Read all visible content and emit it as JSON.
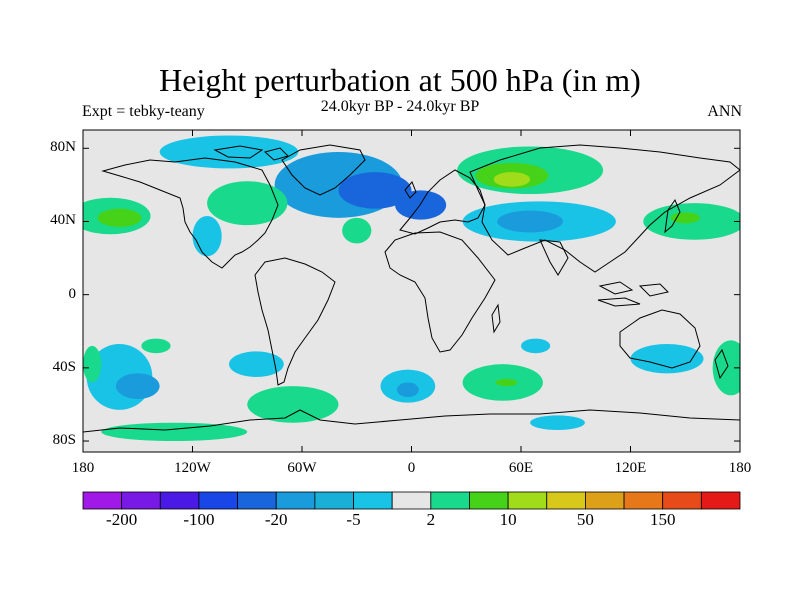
{
  "title": "Height perturbation at 500 hPa (in m)",
  "subtitle": "24.0kyr BP - 24.0kyr BP",
  "left_label": "Expt = tebky-teany",
  "right_label": "ANN",
  "colors": {
    "land_bg": "#e6e6e6",
    "coast": "#000000",
    "blue_light": "#19c3e6",
    "blue_mid": "#199bdc",
    "blue_dark": "#1966dc",
    "green_light": "#19d98c",
    "green_mid": "#46d219",
    "yellow_green": "#a0dc19"
  },
  "map": {
    "lat_ticks": [
      {
        "lat": 80,
        "label": "80N"
      },
      {
        "lat": 40,
        "label": "40N"
      },
      {
        "lat": 0,
        "label": "0"
      },
      {
        "lat": -40,
        "label": "40S"
      },
      {
        "lat": -80,
        "label": "80S"
      }
    ],
    "lon_ticks": [
      {
        "lon": -180,
        "label": "180"
      },
      {
        "lon": -120,
        "label": "120W"
      },
      {
        "lon": -60,
        "label": "60W"
      },
      {
        "lon": 0,
        "label": "0"
      },
      {
        "lon": 60,
        "label": "60E"
      },
      {
        "lon": 120,
        "label": "120E"
      },
      {
        "lon": 180,
        "label": "180"
      }
    ],
    "blobs": [
      {
        "region": "arctic-canada",
        "level": "blue_light",
        "lon": -100,
        "lat": 78,
        "rx": 38,
        "ry": 9
      },
      {
        "region": "north-atlantic",
        "level": "blue_mid",
        "lon": -40,
        "lat": 60,
        "rx": 35,
        "ry": 18
      },
      {
        "region": "north-atlantic-core",
        "level": "blue_dark",
        "lon": -20,
        "lat": 57,
        "rx": 20,
        "ry": 10
      },
      {
        "region": "europe",
        "level": "blue_dark",
        "lon": 5,
        "lat": 49,
        "rx": 14,
        "ry": 8
      },
      {
        "region": "central-asia",
        "level": "blue_light",
        "lon": 70,
        "lat": 40,
        "rx": 42,
        "ry": 11
      },
      {
        "region": "central-asia-core",
        "level": "blue_mid",
        "lon": 65,
        "lat": 40,
        "rx": 18,
        "ry": 6
      },
      {
        "region": "east-pacific",
        "level": "blue_light",
        "lon": -112,
        "lat": 32,
        "rx": 8,
        "ry": 11
      },
      {
        "region": "south-pacific",
        "level": "blue_light",
        "lon": -160,
        "lat": -45,
        "rx": 18,
        "ry": 18
      },
      {
        "region": "south-pacific-core",
        "level": "blue_mid",
        "lon": -150,
        "lat": -50,
        "rx": 12,
        "ry": 7
      },
      {
        "region": "south-america-west",
        "level": "blue_light",
        "lon": -85,
        "lat": -38,
        "rx": 15,
        "ry": 7
      },
      {
        "region": "south-atlantic",
        "level": "blue_light",
        "lon": -2,
        "lat": -50,
        "rx": 15,
        "ry": 9
      },
      {
        "region": "south-atlantic-core",
        "level": "blue_mid",
        "lon": -2,
        "lat": -52,
        "rx": 6,
        "ry": 4
      },
      {
        "region": "south-africa",
        "level": "blue_light",
        "lon": 68,
        "lat": -28,
        "rx": 8,
        "ry": 4
      },
      {
        "region": "australia",
        "level": "blue_light",
        "lon": 140,
        "lat": -35,
        "rx": 20,
        "ry": 8
      },
      {
        "region": "southern-ocean",
        "level": "blue_light",
        "lon": 80,
        "lat": -70,
        "rx": 15,
        "ry": 4
      },
      {
        "region": "siberia",
        "level": "green_light",
        "lon": 65,
        "lat": 68,
        "rx": 40,
        "ry": 13
      },
      {
        "region": "siberia-core",
        "level": "green_mid",
        "lon": 55,
        "lat": 65,
        "rx": 20,
        "ry": 7
      },
      {
        "region": "siberia-peak",
        "level": "yellow_green",
        "lon": 55,
        "lat": 63,
        "rx": 10,
        "ry": 4
      },
      {
        "region": "north-pacific",
        "level": "green_light",
        "lon": -165,
        "lat": 43,
        "rx": 22,
        "ry": 10
      },
      {
        "region": "north-pacific-core",
        "level": "green_mid",
        "lon": -160,
        "lat": 42,
        "rx": 12,
        "ry": 5
      },
      {
        "region": "north-america",
        "level": "green_light",
        "lon": -90,
        "lat": 50,
        "rx": 22,
        "ry": 12
      },
      {
        "region": "mid-atlantic",
        "level": "green_light",
        "lon": -30,
        "lat": 35,
        "rx": 8,
        "ry": 7
      },
      {
        "region": "japan",
        "level": "green_light",
        "lon": 155,
        "lat": 40,
        "rx": 28,
        "ry": 10
      },
      {
        "region": "japan-core",
        "level": "green_mid",
        "lon": 150,
        "lat": 42,
        "rx": 8,
        "ry": 3
      },
      {
        "region": "south-pacific-west",
        "level": "green_light",
        "lon": -140,
        "lat": -28,
        "rx": 8,
        "ry": 4
      },
      {
        "region": "south-america-east",
        "level": "green_light",
        "lon": -65,
        "lat": -60,
        "rx": 25,
        "ry": 10
      },
      {
        "region": "southern-ocean-pacific",
        "level": "green_light",
        "lon": -130,
        "lat": -75,
        "rx": 40,
        "ry": 5
      },
      {
        "region": "indian-ocean",
        "level": "green_light",
        "lon": 50,
        "lat": -48,
        "rx": 22,
        "ry": 10
      },
      {
        "region": "indian-ocean-core",
        "level": "green_mid",
        "lon": 52,
        "lat": -48,
        "rx": 6,
        "ry": 2
      },
      {
        "region": "new-zealand",
        "level": "green_light",
        "lon": 175,
        "lat": -40,
        "rx": 10,
        "ry": 15
      },
      {
        "region": "south-pacific-far-west",
        "level": "green_light",
        "lon": -175,
        "lat": -38,
        "rx": 5,
        "ry": 10
      }
    ]
  },
  "colorbar": {
    "colors": [
      "#a019e6",
      "#7819e6",
      "#4b19e6",
      "#1946e6",
      "#1966dc",
      "#199bdc",
      "#19afd7",
      "#19c3e6",
      "#e6e6e6",
      "#19d98c",
      "#46d219",
      "#a0dc19",
      "#d7c819",
      "#dca019",
      "#e67819",
      "#e64b19",
      "#e61919"
    ],
    "tick_labels": [
      {
        "index": 1,
        "label": "-200"
      },
      {
        "index": 3,
        "label": "-100"
      },
      {
        "index": 5,
        "label": "-20"
      },
      {
        "index": 7,
        "label": "-5"
      },
      {
        "index": 9,
        "label": "2"
      },
      {
        "index": 11,
        "label": "10"
      },
      {
        "index": 13,
        "label": "50"
      },
      {
        "index": 15,
        "label": "150"
      }
    ]
  }
}
